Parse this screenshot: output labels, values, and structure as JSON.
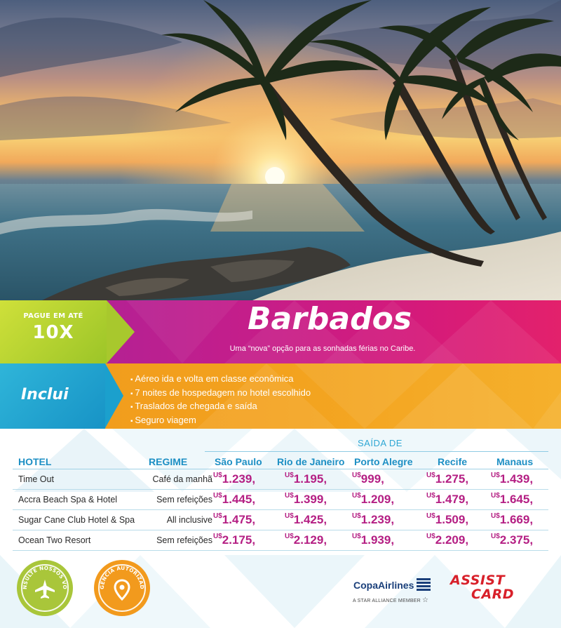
{
  "promo": {
    "pay_label": "PAGUE EM ATÉ",
    "installments": "10X"
  },
  "destination": {
    "title": "Barbados",
    "subtitle": "Uma “nova” opção para as sonhadas férias no Caribe."
  },
  "includes": {
    "title": "Inclui",
    "items": [
      "Aéreo ida e volta em classe econômica",
      "7 noites de hospedagem no hotel escolhido",
      "Traslados de chegada e saída",
      "Seguro viagem"
    ]
  },
  "table": {
    "departure_label": "SAÍDA DE",
    "col_hotel": "HOTEL",
    "col_regime": "REGIME",
    "cities": [
      "São Paulo",
      "Rio de Janeiro",
      "Porto Alegre",
      "Recife",
      "Manaus"
    ],
    "currency": "U$",
    "rows": [
      {
        "hotel": "Time Out",
        "regime": "Café da manhã",
        "prices": [
          "1.239,",
          "1.195,",
          "999,",
          "1.275,",
          "1.439,"
        ]
      },
      {
        "hotel": "Accra Beach Spa & Hotel",
        "regime": "Sem refeições",
        "prices": [
          "1.445,",
          "1.399,",
          "1.209,",
          "1.479,",
          "1.645,"
        ]
      },
      {
        "hotel": "Sugar Cane Club Hotel & Spa",
        "regime": "All inclusive",
        "prices": [
          "1.475,",
          "1.425,",
          "1.239,",
          "1.509,",
          "1.669,"
        ]
      },
      {
        "hotel": "Ocean Two Resort",
        "regime": "Sem refeições",
        "prices": [
          "2.175,",
          "2.129,",
          "1.939,",
          "2.209,",
          "2.375,"
        ]
      }
    ]
  },
  "footer": {
    "badge_flights": "CONSULTE NOSSOS VOOS",
    "badge_agency": "AGÊNCIA AUTORIZADA",
    "copa_name": "CopaAirlines",
    "copa_tagline": "A STAR ALLIANCE MEMBER",
    "assist_line1": "ASSIST",
    "assist_line2": "CARD"
  },
  "colors": {
    "magenta": "#c21e8c",
    "lime": "#a9c63a",
    "orange": "#f29a1d",
    "blue": "#1d8fc4",
    "price": "#b41e83"
  }
}
